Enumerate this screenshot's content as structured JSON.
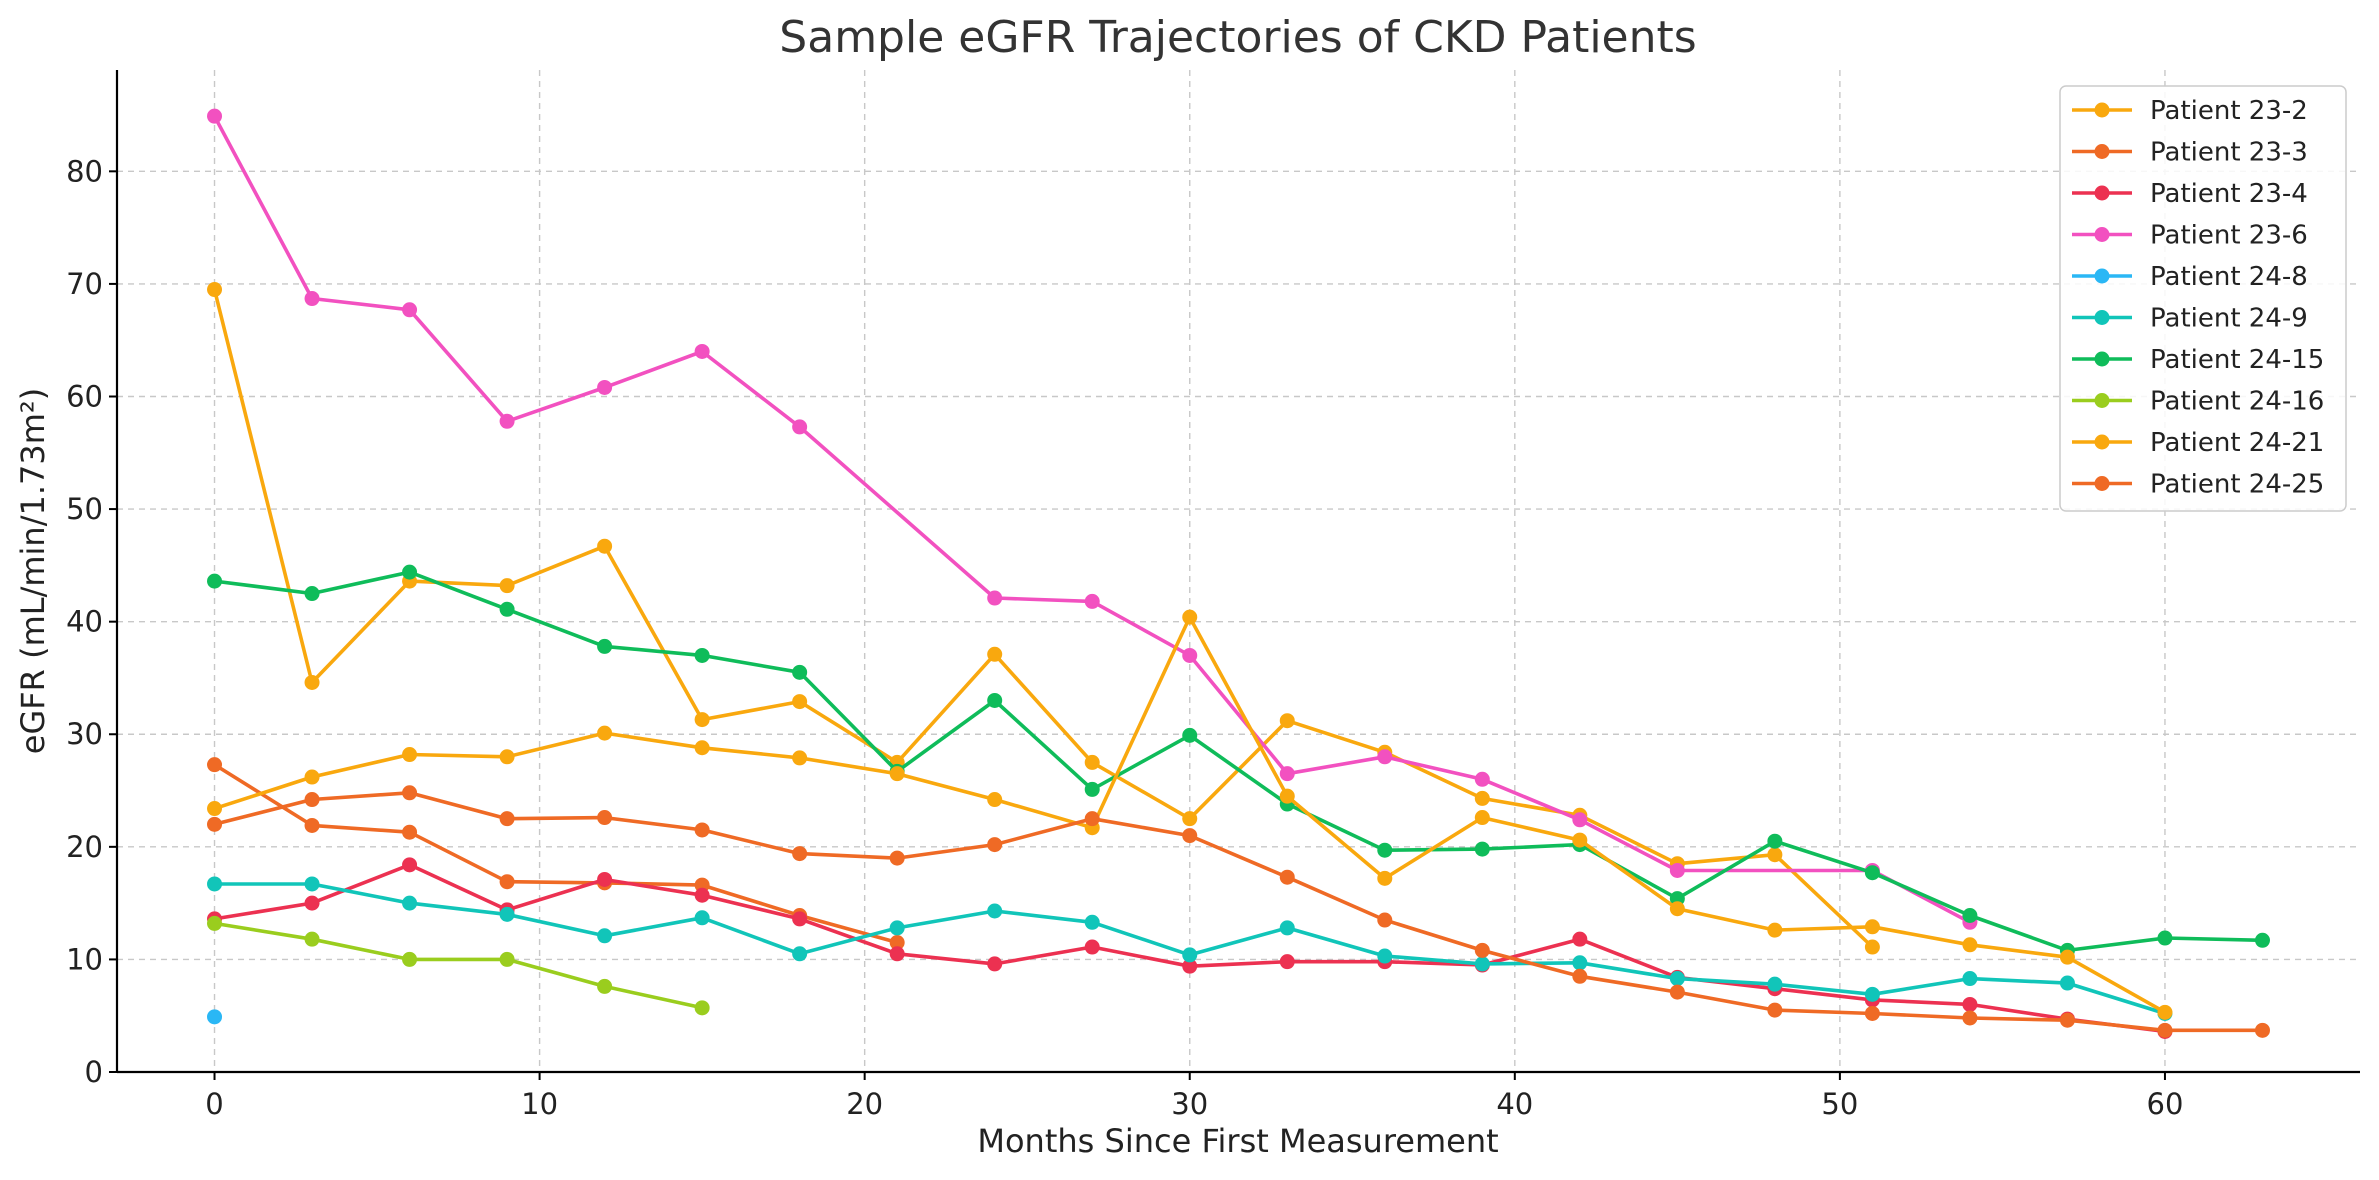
{
  "chart_data": {
    "type": "line",
    "title": "Sample eGFR Trajectories of CKD Patients",
    "xlabel": "Months Since First Measurement",
    "ylabel": "eGFR (mL/min/1.73m²)",
    "xlim": [
      -3,
      66
    ],
    "ylim": [
      0,
      89
    ],
    "xticks": [
      0,
      10,
      20,
      30,
      40,
      50,
      60
    ],
    "yticks": [
      0,
      10,
      20,
      30,
      40,
      50,
      60,
      70,
      80
    ],
    "grid": true,
    "legend_position": "top-right",
    "series": [
      {
        "name": "Patient 23-2",
        "color": "#F9A80E",
        "x": [
          0,
          3,
          6,
          9,
          12,
          15,
          18,
          21,
          24,
          27,
          30,
          33,
          36,
          39,
          42,
          45,
          48,
          51
        ],
        "y": [
          69.5,
          34.6,
          43.6,
          43.2,
          46.7,
          31.3,
          32.9,
          27.5,
          37.1,
          27.5,
          22.5,
          31.2,
          28.4,
          24.3,
          22.8,
          18.5,
          19.3,
          11.1
        ]
      },
      {
        "name": "Patient 23-3",
        "color": "#EF6A25",
        "x": [
          0,
          3,
          6,
          9,
          12,
          15,
          18,
          21
        ],
        "y": [
          27.3,
          21.9,
          21.3,
          16.9,
          16.8,
          16.6,
          13.9,
          11.5
        ]
      },
      {
        "name": "Patient 23-4",
        "color": "#EC3151",
        "x": [
          0,
          3,
          6,
          9,
          12,
          15,
          18,
          21,
          24,
          27,
          30,
          33,
          36,
          39,
          42,
          45,
          48,
          51,
          54,
          57,
          60
        ],
        "y": [
          13.6,
          15.0,
          18.4,
          14.4,
          17.1,
          15.7,
          13.6,
          10.5,
          9.6,
          11.1,
          9.4,
          9.8,
          9.8,
          9.5,
          11.8,
          8.4,
          7.4,
          6.4,
          6.0,
          4.7,
          3.6
        ]
      },
      {
        "name": "Patient 23-6",
        "color": "#F251C0",
        "x": [
          0,
          3,
          6,
          9,
          12,
          15,
          18,
          24,
          27,
          30,
          33,
          36,
          39,
          42,
          45,
          51,
          54
        ],
        "y": [
          84.9,
          68.7,
          67.7,
          57.8,
          60.8,
          64.0,
          57.3,
          42.1,
          41.8,
          37.0,
          26.5,
          28.0,
          26.0,
          22.4,
          17.9,
          17.9,
          13.3
        ]
      },
      {
        "name": "Patient 24-8",
        "color": "#2AB7F5",
        "x": [
          0
        ],
        "y": [
          4.9
        ]
      },
      {
        "name": "Patient 24-9",
        "color": "#11C5B9",
        "x": [
          0,
          3,
          6,
          9,
          12,
          15,
          18,
          21,
          24,
          27,
          30,
          33,
          36,
          39,
          42,
          45,
          48,
          51,
          54,
          57,
          60
        ],
        "y": [
          16.7,
          16.7,
          15.0,
          14.0,
          12.1,
          13.7,
          10.5,
          12.8,
          14.3,
          13.3,
          10.4,
          12.8,
          10.3,
          9.6,
          9.7,
          8.3,
          7.8,
          6.9,
          8.3,
          7.9,
          5.2
        ]
      },
      {
        "name": "Patient 24-15",
        "color": "#0FBC5A",
        "x": [
          0,
          3,
          6,
          9,
          12,
          15,
          18,
          21,
          24,
          27,
          30,
          33,
          36,
          39,
          42,
          45,
          48,
          51,
          54,
          57,
          60,
          63
        ],
        "y": [
          43.6,
          42.5,
          44.4,
          41.1,
          37.8,
          37.0,
          35.5,
          26.7,
          33.0,
          25.1,
          29.9,
          23.8,
          19.7,
          19.8,
          20.2,
          15.4,
          20.5,
          17.7,
          13.9,
          10.8,
          11.9,
          11.7
        ]
      },
      {
        "name": "Patient 24-16",
        "color": "#9ACD1E",
        "x": [
          0,
          3,
          6,
          9,
          12,
          15
        ],
        "y": [
          13.2,
          11.8,
          10.0,
          10.0,
          7.6,
          5.7
        ]
      },
      {
        "name": "Patient 24-21",
        "color": "#F9A80E",
        "x": [
          0,
          3,
          6,
          9,
          12,
          15,
          18,
          21,
          24,
          27,
          30,
          33,
          36,
          39,
          42,
          45,
          48,
          51,
          54,
          57,
          60
        ],
        "y": [
          23.4,
          26.2,
          28.2,
          28.0,
          30.1,
          28.8,
          27.9,
          26.5,
          24.2,
          21.7,
          40.4,
          24.5,
          17.2,
          22.6,
          20.6,
          14.5,
          12.6,
          12.9,
          11.3,
          10.2,
          5.3
        ]
      },
      {
        "name": "Patient 24-25",
        "color": "#EF6A25",
        "x": [
          0,
          3,
          6,
          9,
          12,
          15,
          18,
          21,
          24,
          27,
          30,
          33,
          36,
          39,
          42,
          45,
          48,
          51,
          54,
          57,
          60,
          63
        ],
        "y": [
          22.0,
          24.2,
          24.8,
          22.5,
          22.6,
          21.5,
          19.4,
          19.0,
          20.2,
          22.5,
          21.0,
          17.3,
          13.5,
          10.8,
          8.5,
          7.1,
          5.5,
          5.2,
          4.8,
          4.6,
          3.7,
          3.7
        ]
      }
    ]
  }
}
